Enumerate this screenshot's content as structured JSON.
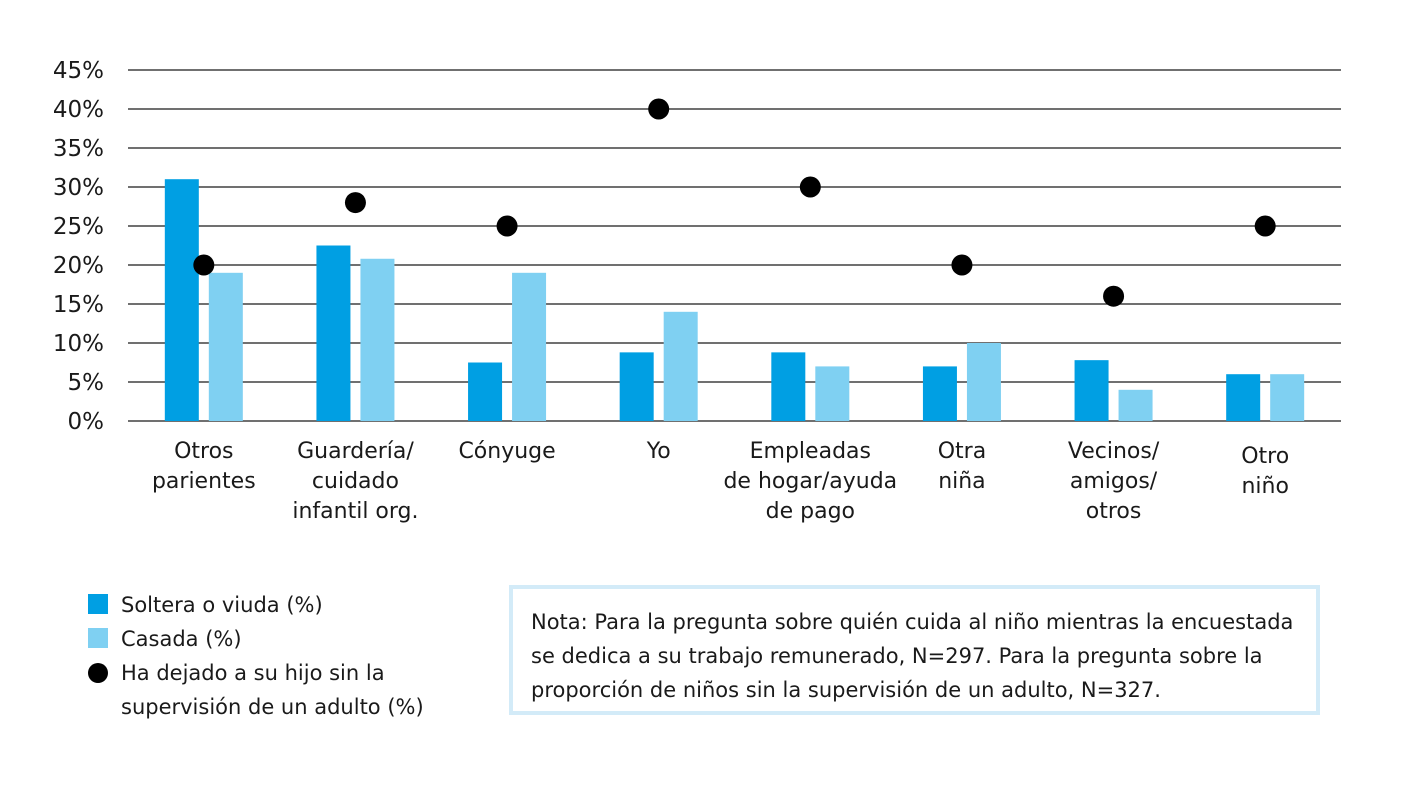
{
  "colors": {
    "single": "#009fe3",
    "married": "#7fd0f2",
    "unsupervised": "#000000",
    "grid": "#1a1a1a",
    "note_border": "#d3ebf8"
  },
  "chart_data": {
    "type": "bar",
    "categories": [
      [
        "Otros",
        "parientes"
      ],
      [
        "Guardería/",
        "cuidado",
        "infantil org."
      ],
      [
        "Cónyuge"
      ],
      [
        "Yo"
      ],
      [
        "Empleadas",
        "de hogar/ayuda",
        "de pago"
      ],
      [
        "Otra",
        "niña"
      ],
      [
        "Vecinos/",
        "amigos/",
        "otros"
      ],
      [
        "Otro",
        "niño"
      ]
    ],
    "series": [
      {
        "name": "Soltera o viuda  (%)",
        "kind": "bar",
        "values": [
          31,
          22.5,
          7.5,
          8.8,
          8.8,
          7,
          7.8,
          6
        ]
      },
      {
        "name": "Casada (%)",
        "kind": "bar",
        "values": [
          19,
          20.8,
          19,
          14,
          7,
          10,
          4,
          6
        ]
      },
      {
        "name": "Ha dejado a su hijo sin la supervisión de un adulto  (%)",
        "kind": "dot",
        "values": [
          20,
          28,
          25,
          40,
          30,
          20,
          16,
          25
        ]
      }
    ],
    "y_ticks": [
      "0%",
      "5%",
      "10%",
      "15%",
      "20%",
      "25%",
      "30%",
      "35%",
      "40%",
      "45%"
    ],
    "ylim": [
      0,
      45
    ],
    "grid": true,
    "legend_position": "bottom-left"
  },
  "legend": [
    {
      "label": "Soltera o viuda  (%)"
    },
    {
      "label": "Casada (%)"
    },
    {
      "label_lines": [
        "Ha dejado a su hijo sin la",
        "supervisión de un adulto  (%)"
      ]
    }
  ],
  "note": {
    "lines": [
      "Nota: Para la pregunta sobre quién cuida al niño mientras la encuestada",
      "se dedica a su trabajo remunerado, N=297. Para la pregunta sobre la",
      "proporción de niños sin la supervisión de un adulto, N=327."
    ]
  }
}
